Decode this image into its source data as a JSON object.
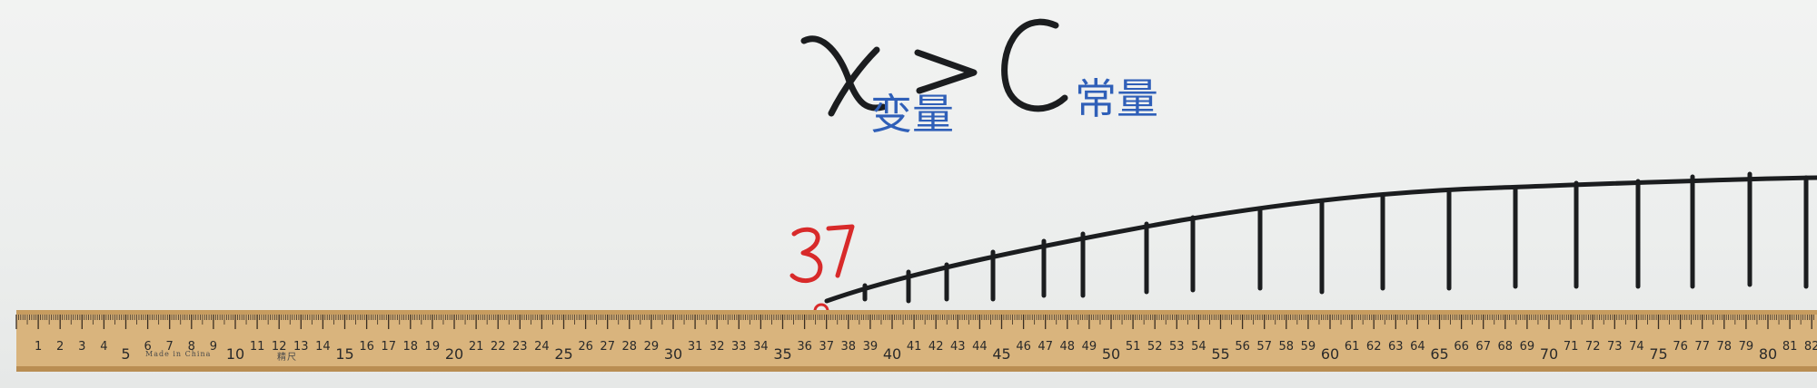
{
  "formula": {
    "variable_symbol": "x",
    "variable_label": "变量",
    "operator": ">",
    "constant_symbol": "C",
    "constant_label": "常量"
  },
  "marker": {
    "value_label": "37",
    "color": "#d82a2a"
  },
  "ruler": {
    "start": 1,
    "end": 82,
    "brand_text": "Made in China",
    "brand_cjk": "精尺",
    "color": "#d8b27a"
  },
  "colors": {
    "ink_black": "#1b1d1f",
    "ink_blue": "#2f5fb8",
    "ink_red": "#d82a2a"
  }
}
